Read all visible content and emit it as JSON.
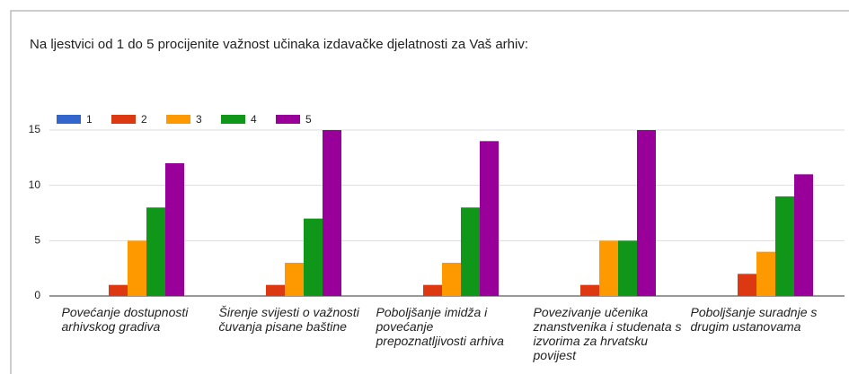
{
  "chart_data": {
    "type": "bar",
    "title": "Na ljestvici od 1 do 5 procijenite važnost učinaka izdavačke djelatnosti za Vaš arhiv:",
    "categories": [
      "Povećanje dostupnosti arhivskog gradiva",
      "Širenje svijesti o važnosti čuvanja pisane baštine",
      "Poboljšanje imidža i povećanje prepoznatljivosti arhiva",
      "Povezivanje učenika znanstvenika i studenata s izvorima za hrvatsku povijest",
      "Poboljšanje suradnje s drugim ustanovama"
    ],
    "series": [
      {
        "name": "1",
        "color": "#3366cc",
        "values": [
          0,
          0,
          0,
          0,
          0
        ]
      },
      {
        "name": "2",
        "color": "#dc3912",
        "values": [
          1,
          1,
          1,
          1,
          2
        ]
      },
      {
        "name": "3",
        "color": "#ff9900",
        "values": [
          5,
          3,
          3,
          5,
          4
        ]
      },
      {
        "name": "4",
        "color": "#109618",
        "values": [
          8,
          7,
          8,
          5,
          9
        ]
      },
      {
        "name": "5",
        "color": "#990099",
        "values": [
          12,
          15,
          14,
          15,
          11
        ]
      }
    ],
    "ylim": [
      0,
      15
    ],
    "yticks": [
      0,
      5,
      10,
      15
    ],
    "grid": true,
    "legend": "top"
  }
}
